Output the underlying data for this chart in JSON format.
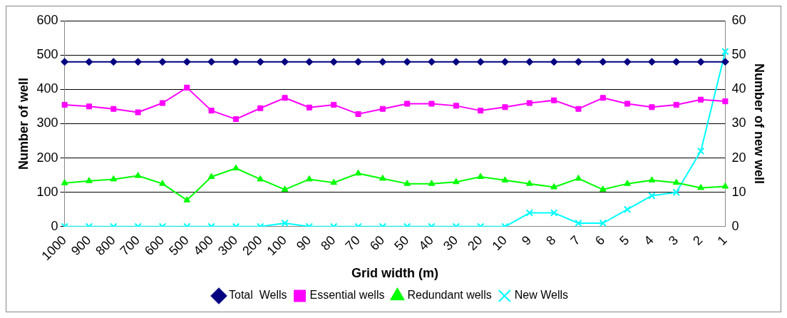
{
  "chart_data": {
    "type": "line",
    "xlabel": "Grid width (m)",
    "ylabel": "Number of well",
    "y2label": "Number of new well",
    "categories": [
      "1000",
      "900",
      "800",
      "700",
      "600",
      "500",
      "400",
      "300",
      "200",
      "100",
      "90",
      "80",
      "70",
      "60",
      "50",
      "40",
      "30",
      "20",
      "10",
      "9",
      "8",
      "7",
      "6",
      "5",
      "4",
      "3",
      "2",
      "1"
    ],
    "series": [
      {
        "name": "Total  Wells",
        "color": "#000080",
        "marker": "diamond",
        "values": [
          480,
          480,
          480,
          480,
          480,
          480,
          480,
          480,
          480,
          480,
          480,
          480,
          480,
          480,
          480,
          480,
          480,
          480,
          480,
          480,
          480,
          480,
          480,
          480,
          480,
          480,
          480,
          480
        ]
      },
      {
        "name": "Essential wells",
        "color": "#ff00ff",
        "marker": "square",
        "values": [
          355,
          350,
          343,
          333,
          360,
          405,
          338,
          313,
          345,
          375,
          347,
          355,
          328,
          343,
          358,
          358,
          352,
          338,
          348,
          360,
          368,
          343,
          375,
          358,
          348,
          355,
          370,
          365
        ]
      },
      {
        "name": "Redundant wells",
        "color": "#00ff00",
        "marker": "triangle",
        "values": [
          127,
          133,
          138,
          148,
          125,
          77,
          145,
          170,
          138,
          108,
          138,
          128,
          155,
          140,
          125,
          125,
          130,
          145,
          135,
          125,
          115,
          140,
          108,
          125,
          135,
          128,
          113,
          117
        ]
      },
      {
        "name": "New Wells",
        "color": "#00ffff",
        "marker": "cross",
        "axis": "y2",
        "values": [
          0,
          0,
          0,
          0,
          0,
          0,
          0,
          0,
          0,
          1,
          0,
          0,
          0,
          0,
          0,
          0,
          0,
          0,
          0,
          4,
          4,
          1,
          1,
          5,
          9,
          10,
          22,
          51
        ]
      }
    ],
    "ylim": [
      0,
      600
    ],
    "yticks": [
      0,
      100,
      200,
      300,
      400,
      500,
      600
    ],
    "y2lim": [
      0,
      60
    ],
    "y2ticks": [
      0,
      10,
      20,
      30,
      40,
      50,
      60
    ],
    "grid": "y",
    "legend": "bottom",
    "line_style": "solid"
  }
}
